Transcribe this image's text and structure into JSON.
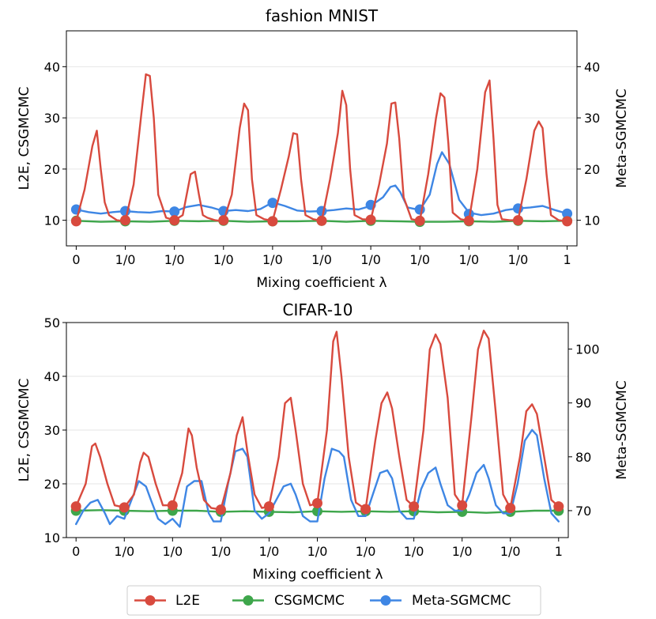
{
  "chart_data": [
    {
      "type": "line",
      "title": "fashion MNIST",
      "xlabel": "Mixing coefficient λ",
      "ylabel": "L2E, CSGMCMC",
      "ylabel_right": "Meta-SGMCMC",
      "xlim": [
        -0.2,
        10.2
      ],
      "ylim": [
        5,
        47
      ],
      "ylim_right": [
        5,
        47
      ],
      "xtick_labels": [
        "0",
        "1/0",
        "1/0",
        "1/0",
        "1/0",
        "1/0",
        "1/0",
        "1/0",
        "1/0",
        "1/0",
        "1"
      ],
      "yticks": [
        10,
        20,
        30,
        40
      ],
      "yticks_right": [
        10,
        20,
        30,
        40
      ],
      "series": [
        {
          "name": "L2E",
          "color": "#d84a3e",
          "axis": "left",
          "x": [
            0,
            0.17,
            0.33,
            0.42,
            0.5,
            0.58,
            0.67,
            0.83,
            1,
            1.17,
            1.33,
            1.42,
            1.5,
            1.58,
            1.67,
            1.83,
            2,
            2.17,
            2.33,
            2.42,
            2.5,
            2.58,
            2.67,
            2.83,
            3,
            3.17,
            3.33,
            3.42,
            3.5,
            3.58,
            3.67,
            3.83,
            4,
            4.17,
            4.33,
            4.42,
            4.5,
            4.58,
            4.67,
            4.83,
            5,
            5.17,
            5.33,
            5.42,
            5.5,
            5.58,
            5.67,
            5.83,
            6,
            6.17,
            6.33,
            6.42,
            6.5,
            6.58,
            6.67,
            6.83,
            7,
            7.17,
            7.33,
            7.42,
            7.5,
            7.58,
            7.67,
            7.83,
            8,
            8.17,
            8.33,
            8.42,
            8.5,
            8.58,
            8.67,
            8.83,
            9,
            9.17,
            9.33,
            9.42,
            9.5,
            9.58,
            9.67,
            9.83,
            10
          ],
          "values": [
            9.8,
            16,
            24.5,
            27.5,
            20,
            13.5,
            11,
            10,
            9.8,
            17,
            31,
            38.5,
            38.2,
            30,
            15,
            10.5,
            10,
            11,
            19,
            19.5,
            15,
            11,
            10.5,
            10,
            9.8,
            15,
            28,
            32.8,
            31.5,
            18,
            11,
            10.2,
            9.9,
            16,
            22.5,
            27,
            26.8,
            18,
            11,
            10.2,
            9.9,
            18,
            27,
            35.3,
            32.5,
            20,
            11,
            10.2,
            10.1,
            17,
            25,
            32.8,
            33,
            26,
            14.5,
            10.2,
            9.9,
            19,
            30,
            34.8,
            34,
            25,
            11.5,
            10.2,
            9.9,
            20,
            35,
            37.3,
            26,
            13,
            10.2,
            10,
            10,
            18,
            27.5,
            29.3,
            28,
            19,
            11,
            10,
            9.8
          ],
          "markers_x": [
            0,
            1,
            2,
            3,
            4,
            5,
            6,
            7,
            8,
            9,
            10
          ],
          "markers_y": [
            9.8,
            10,
            10,
            10,
            9.8,
            9.9,
            10.1,
            9.9,
            9.9,
            10,
            9.8
          ]
        },
        {
          "name": "CSGMCMC",
          "color": "#3ea64b",
          "axis": "left",
          "x": [
            0,
            0.5,
            1,
            1.5,
            2,
            2.5,
            3,
            3.5,
            4,
            4.5,
            5,
            5.5,
            6,
            6.5,
            7,
            7.5,
            8,
            8.5,
            9,
            9.5,
            10
          ],
          "values": [
            9.9,
            9.7,
            9.8,
            9.7,
            9.9,
            9.8,
            9.9,
            9.7,
            9.8,
            9.8,
            9.9,
            9.7,
            9.9,
            9.8,
            9.7,
            9.7,
            9.8,
            9.7,
            9.9,
            9.8,
            9.9
          ],
          "markers_x": [
            0,
            1,
            2,
            3,
            4,
            5,
            6,
            7,
            8,
            9,
            10
          ],
          "markers_y": [
            9.9,
            9.8,
            9.9,
            9.9,
            9.8,
            9.9,
            9.9,
            9.7,
            9.8,
            9.9,
            9.9
          ]
        },
        {
          "name": "Meta-SGMCMC",
          "color": "#3e86e4",
          "axis": "right",
          "x": [
            0,
            0.25,
            0.5,
            0.75,
            1,
            1.25,
            1.5,
            1.75,
            2,
            2.25,
            2.5,
            2.75,
            3,
            3.25,
            3.5,
            3.75,
            4,
            4.25,
            4.5,
            4.75,
            5,
            5.25,
            5.5,
            5.75,
            6,
            6.25,
            6.4,
            6.5,
            6.6,
            6.75,
            7,
            7.2,
            7.35,
            7.45,
            7.6,
            7.8,
            8,
            8.25,
            8.5,
            8.75,
            9,
            9.25,
            9.5,
            9.75,
            10
          ],
          "values": [
            12.1,
            11.6,
            11.3,
            11.6,
            11.8,
            11.6,
            11.5,
            11.8,
            11.7,
            12.6,
            13,
            12.5,
            11.8,
            12,
            11.8,
            12.2,
            13.5,
            12.8,
            11.9,
            11.7,
            11.8,
            12,
            12.3,
            12.1,
            12.8,
            14.5,
            16.5,
            16.8,
            15.5,
            12.5,
            12,
            15,
            21,
            23.3,
            21,
            14,
            11.5,
            11,
            11.3,
            12,
            12.3,
            12.5,
            12.8,
            12,
            11.3
          ],
          "markers_x": [
            0,
            1,
            2,
            3,
            4,
            5,
            6,
            7,
            8,
            9,
            10
          ],
          "markers_y": [
            12.1,
            11.8,
            11.7,
            11.8,
            13.4,
            11.8,
            13,
            12.1,
            11.2,
            12.3,
            11.3
          ]
        }
      ]
    },
    {
      "type": "line",
      "title": "CIFAR-10",
      "xlabel": "Mixing coefficient λ",
      "ylabel": "L2E, CSGMCMC",
      "ylabel_right": "Meta-SGMCMC",
      "xlim": [
        -0.2,
        10.2
      ],
      "ylim": [
        10,
        50
      ],
      "ylim_right": [
        65,
        104.93
      ],
      "xtick_labels": [
        "0",
        "1/0",
        "1/0",
        "1/0",
        "1/0",
        "1/0",
        "1/0",
        "1/0",
        "1/0",
        "1/0",
        "1"
      ],
      "yticks": [
        10,
        20,
        30,
        40,
        50
      ],
      "yticks_right": [
        70,
        80,
        90,
        100
      ],
      "series": [
        {
          "name": "L2E",
          "color": "#d84a3e",
          "axis": "left",
          "x": [
            0,
            0.2,
            0.33,
            0.4,
            0.5,
            0.65,
            0.8,
            1,
            1.2,
            1.33,
            1.4,
            1.5,
            1.65,
            1.8,
            2,
            2.2,
            2.33,
            2.4,
            2.5,
            2.65,
            2.8,
            3,
            3.2,
            3.33,
            3.45,
            3.55,
            3.7,
            3.85,
            4,
            4.2,
            4.33,
            4.45,
            4.55,
            4.7,
            4.85,
            5,
            5.2,
            5.33,
            5.4,
            5.5,
            5.65,
            5.8,
            6,
            6.2,
            6.33,
            6.45,
            6.55,
            6.7,
            6.85,
            7,
            7.2,
            7.33,
            7.45,
            7.55,
            7.7,
            7.85,
            8,
            8.2,
            8.33,
            8.45,
            8.55,
            8.7,
            8.85,
            9,
            9.2,
            9.33,
            9.45,
            9.55,
            9.7,
            9.85,
            10
          ],
          "values": [
            15.8,
            20,
            27,
            27.5,
            25,
            20,
            16,
            15.6,
            18,
            24,
            25.8,
            25,
            20,
            16,
            16,
            22,
            30.3,
            29,
            23,
            17,
            15.5,
            15.2,
            22,
            29,
            32.4,
            26,
            18,
            15.5,
            15.8,
            25,
            35,
            36,
            30,
            20,
            16,
            16.4,
            30,
            46.5,
            48.3,
            40,
            25,
            16.5,
            15.3,
            28,
            35,
            37,
            34,
            25,
            17,
            15.8,
            30,
            45,
            47.8,
            46,
            36,
            18,
            16,
            33,
            45,
            48.5,
            47,
            33,
            18,
            15.5,
            25,
            33.5,
            34.8,
            33,
            25,
            17,
            15.8
          ],
          "markers_x": [
            0,
            1,
            2,
            3,
            4,
            5,
            6,
            7,
            8,
            9,
            10
          ],
          "markers_y": [
            15.8,
            15.6,
            16,
            15.2,
            15.8,
            16.4,
            15.3,
            15.8,
            16,
            15.5,
            15.8
          ]
        },
        {
          "name": "CSGMCMC",
          "color": "#3ea64b",
          "axis": "left",
          "x": [
            0,
            0.5,
            1,
            1.5,
            2,
            2.5,
            3,
            3.5,
            4,
            4.5,
            5,
            5.5,
            6,
            6.5,
            7,
            7.5,
            8,
            8.5,
            9,
            9.5,
            10
          ],
          "values": [
            15,
            15.1,
            15,
            14.9,
            15,
            15,
            14.8,
            14.9,
            14.8,
            14.7,
            14.9,
            14.8,
            14.9,
            14.8,
            14.9,
            14.7,
            14.8,
            14.6,
            14.8,
            15,
            15
          ],
          "markers_x": [
            0,
            1,
            2,
            3,
            4,
            5,
            6,
            7,
            8,
            9,
            10
          ],
          "markers_y": [
            15,
            15,
            15,
            14.8,
            14.8,
            14.9,
            14.9,
            14.9,
            14.8,
            14.8,
            15
          ]
        },
        {
          "name": "Meta-SGMCMC",
          "color": "#3e86e4",
          "axis": "right",
          "x": [
            0,
            0.15,
            0.3,
            0.45,
            0.6,
            0.7,
            0.85,
            1,
            1.15,
            1.3,
            1.45,
            1.55,
            1.7,
            1.85,
            2,
            2.15,
            2.3,
            2.45,
            2.6,
            2.75,
            2.85,
            3,
            3.15,
            3.3,
            3.45,
            3.55,
            3.7,
            3.85,
            4,
            4.15,
            4.3,
            4.45,
            4.55,
            4.7,
            4.85,
            5,
            5.15,
            5.3,
            5.45,
            5.55,
            5.7,
            5.85,
            6,
            6.15,
            6.3,
            6.45,
            6.55,
            6.7,
            6.85,
            7,
            7.15,
            7.3,
            7.45,
            7.55,
            7.7,
            7.85,
            8,
            8.15,
            8.3,
            8.45,
            8.55,
            8.7,
            8.85,
            9,
            9.15,
            9.3,
            9.45,
            9.55,
            9.7,
            9.85,
            10
          ],
          "values": [
            67.5,
            70,
            71.5,
            72,
            69.5,
            67.5,
            69,
            68.5,
            72,
            75.5,
            74.5,
            72,
            68.5,
            67.5,
            68.5,
            67,
            74.5,
            75.5,
            75.5,
            69.5,
            68,
            68,
            75,
            81,
            81.5,
            80,
            70,
            68.5,
            69.5,
            72,
            74.5,
            75,
            73,
            69,
            68,
            68,
            76,
            81.5,
            81,
            80,
            72,
            69,
            69,
            73,
            77,
            77.5,
            76,
            70,
            68.5,
            68.5,
            74,
            77,
            78,
            75,
            71,
            70,
            70,
            73,
            77,
            78.5,
            76,
            71,
            69.5,
            69.5,
            75,
            83,
            85,
            84,
            76,
            69.5,
            68
          ]
        }
      ]
    }
  ],
  "legend": {
    "items": [
      {
        "label": "L2E",
        "color": "#d84a3e"
      },
      {
        "label": "CSGMCMC",
        "color": "#3ea64b"
      },
      {
        "label": "Meta-SGMCMC",
        "color": "#3e86e4"
      }
    ]
  }
}
